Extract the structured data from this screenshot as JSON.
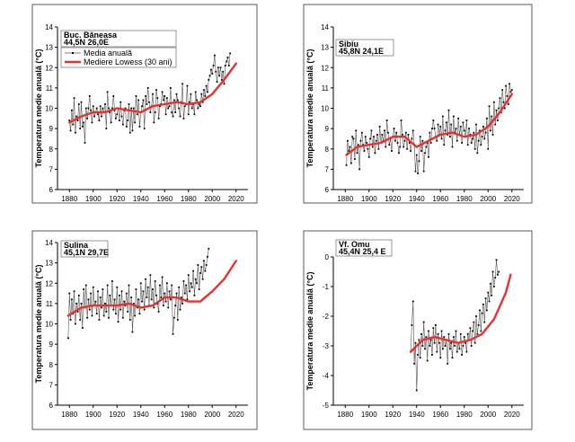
{
  "chart_data": [
    {
      "type": "line",
      "station": "Buc. Băneasa",
      "coords": "44,5N 26,0E",
      "ylabel": "Temperatura medie anuală (°C)",
      "xlabel": "",
      "xlim": [
        1870,
        2030
      ],
      "xticks": [
        1880,
        1900,
        1920,
        1940,
        1960,
        1980,
        2000,
        2020
      ],
      "ylim": [
        6,
        14
      ],
      "yticks": [
        6,
        7,
        8,
        9,
        10,
        11,
        12,
        13,
        14
      ],
      "legend": [
        "Media anuală",
        "Mediere Lowess (30 ani)"
      ],
      "legend_position": "top-left",
      "colors": {
        "annual": "#000000",
        "lowess": "#e8312f"
      },
      "annual": {
        "start_year": 1880,
        "values": [
          9.4,
          8.9,
          9.9,
          9.2,
          10.5,
          8.8,
          9.6,
          9.4,
          10.2,
          9.0,
          10.3,
          9.1,
          9.3,
          8.3,
          10.0,
          9.5,
          10.0,
          10.6,
          9.9,
          9.3,
          10.1,
          9.6,
          9.8,
          10.0,
          9.7,
          9.4,
          10.1,
          9.6,
          10.0,
          9.8,
          10.2,
          9.0,
          10.8,
          10.0,
          9.8,
          9.3,
          10.0,
          10.6,
          9.9,
          9.5,
          9.7,
          10.0,
          9.4,
          10.3,
          9.6,
          9.2,
          9.9,
          10.0,
          9.1,
          9.4,
          10.2,
          8.8,
          10.0,
          8.9,
          10.0,
          9.3,
          10.6,
          9.7,
          10.4,
          9.1,
          9.8,
          10.1,
          10.4,
          9.0,
          10.6,
          10.2,
          11.0,
          10.3,
          9.8,
          10.1,
          10.7,
          9.3,
          9.8,
          10.9,
          10.5,
          9.5,
          10.1,
          10.2,
          10.8,
          10.4,
          10.6,
          9.7,
          10.5,
          10.0,
          10.1,
          11.0,
          9.8,
          9.6,
          10.4,
          9.8,
          10.7,
          10.4,
          10.0,
          9.6,
          10.3,
          11.2,
          9.5,
          10.1,
          10.2,
          11.1,
          9.7,
          10.3,
          10.7,
          10.0,
          10.2,
          9.7,
          10.8,
          10.4,
          10.0,
          10.2,
          10.1,
          10.7,
          10.3,
          10.9,
          10.6,
          11.1,
          10.8,
          11.4,
          11.6,
          11.9,
          11.7,
          12.1,
          12.6,
          11.8,
          11.3,
          12.0,
          11.6,
          12.0,
          11.4,
          11.8,
          11.2,
          12.1,
          12.3,
          12.5,
          12.1,
          12.7
        ]
      },
      "lowess": {
        "x": [
          1880,
          1890,
          1900,
          1910,
          1920,
          1930,
          1940,
          1950,
          1960,
          1970,
          1980,
          1990,
          2000,
          2010,
          2020
        ],
        "y": [
          9.3,
          9.6,
          9.8,
          9.8,
          10.0,
          9.9,
          9.8,
          10.1,
          10.2,
          10.3,
          10.2,
          10.3,
          10.7,
          11.4,
          12.2
        ]
      }
    },
    {
      "type": "line",
      "station": "Sibiu",
      "coords": "45,8N 24,1E",
      "ylabel": "Temperatura medie anuală (°C)",
      "xlabel": "",
      "xlim": [
        1870,
        2030
      ],
      "xticks": [
        1880,
        1900,
        1920,
        1940,
        1960,
        1980,
        2000,
        2020
      ],
      "ylim": [
        6,
        14
      ],
      "yticks": [
        6,
        7,
        8,
        9,
        10,
        11,
        12,
        13,
        14
      ],
      "legend": [],
      "colors": {
        "annual": "#000000",
        "lowess": "#e8312f"
      },
      "annual": {
        "start_year": 1881,
        "values": [
          7.2,
          8.4,
          7.9,
          8.1,
          7.3,
          8.6,
          8.5,
          7.5,
          8.9,
          7.8,
          8.2,
          7.0,
          8.4,
          8.8,
          8.2,
          7.9,
          8.6,
          8.3,
          8.0,
          7.6,
          8.5,
          8.9,
          8.1,
          8.6,
          7.8,
          8.4,
          8.7,
          8.0,
          9.1,
          8.3,
          8.7,
          8.4,
          8.9,
          8.1,
          9.4,
          8.8,
          8.2,
          8.5,
          7.9,
          8.6,
          9.0,
          8.4,
          8.8,
          8.3,
          7.8,
          8.1,
          9.4,
          8.7,
          8.1,
          8.4,
          8.8,
          8.0,
          8.7,
          8.3,
          7.9,
          8.5,
          8.9,
          8.2,
          6.9,
          7.7,
          6.8,
          7.4,
          8.6,
          7.9,
          8.4,
          6.9,
          7.8,
          8.1,
          8.3,
          7.6,
          8.8,
          8.3,
          9.0,
          9.4,
          9.0,
          8.6,
          8.4,
          9.2,
          8.7,
          9.1,
          8.5,
          9.6,
          8.2,
          8.9,
          9.3,
          8.7,
          9.9,
          8.6,
          9.2,
          8.1,
          9.6,
          8.8,
          9.0,
          8.4,
          9.5,
          8.7,
          9.1,
          8.3,
          9.3,
          8.9,
          8.6,
          9.4,
          8.2,
          9.0,
          8.7,
          8.3,
          8.5,
          8.8,
          8.0,
          9.2,
          7.8,
          8.4,
          8.9,
          8.2,
          8.6,
          9.1,
          8.5,
          8.8,
          9.5,
          8.0,
          10.1,
          8.9,
          9.6,
          8.7,
          10.3,
          9.2,
          9.9,
          9.4,
          10.0,
          10.5,
          9.8,
          10.9,
          10.3,
          10.0,
          11.1,
          10.6,
          10.2,
          11.2,
          10.8,
          10.9
        ]
      },
      "lowess": {
        "x": [
          1881,
          1890,
          1900,
          1910,
          1920,
          1930,
          1940,
          1950,
          1960,
          1970,
          1980,
          1990,
          2000,
          2010,
          2020
        ],
        "y": [
          7.7,
          8.1,
          8.2,
          8.3,
          8.6,
          8.6,
          8.1,
          8.4,
          8.7,
          8.8,
          8.6,
          8.7,
          9.1,
          9.8,
          10.7
        ]
      }
    },
    {
      "type": "line",
      "station": "Sulina",
      "coords": "45,1N 29,7E",
      "ylabel": "Temperatura medie anuală (°C)",
      "xlabel": "",
      "xlim": [
        1870,
        2030
      ],
      "xticks": [
        1880,
        1900,
        1920,
        1940,
        1960,
        1980,
        2000,
        2020
      ],
      "ylim": [
        6,
        14
      ],
      "yticks": [
        6,
        7,
        8,
        9,
        10,
        11,
        12,
        13,
        14
      ],
      "legend": [],
      "colors": {
        "annual": "#000000",
        "lowess": "#e8312f"
      },
      "annual": {
        "start_year": 1879,
        "values": [
          9.3,
          11.5,
          10.2,
          11.2,
          10.5,
          11.6,
          10.0,
          11.0,
          10.6,
          11.4,
          10.2,
          11.0,
          9.8,
          11.7,
          10.8,
          11.9,
          10.3,
          11.2,
          10.7,
          11.5,
          10.4,
          11.8,
          10.9,
          11.1,
          10.5,
          11.6,
          10.2,
          11.3,
          10.8,
          11.7,
          10.4,
          11.0,
          10.6,
          11.9,
          10.3,
          11.4,
          10.9,
          12.1,
          10.7,
          11.2,
          10.5,
          11.8,
          10.1,
          11.4,
          10.7,
          11.6,
          10.3,
          11.1,
          10.9,
          11.5,
          10.6,
          11.9,
          10.2,
          11.3,
          9.6,
          11.0,
          10.4,
          11.7,
          10.8,
          11.2,
          10.5,
          12.0,
          11.1,
          11.6,
          10.7,
          12.2,
          11.3,
          11.8,
          10.9,
          12.4,
          11.2,
          11.7,
          10.8,
          12.1,
          11.4,
          11.0,
          10.6,
          11.9,
          11.3,
          12.3,
          10.9,
          11.5,
          11.1,
          12.0,
          10.8,
          11.6,
          11.2,
          11.9,
          9.5,
          10.3,
          10.9,
          11.5,
          10.2,
          11.8,
          10.7,
          11.3,
          11.0,
          12.1,
          11.5,
          11.9,
          11.2,
          12.4,
          11.6,
          12.0,
          11.8,
          12.6,
          11.4,
          12.2,
          12.0,
          12.9,
          11.7,
          12.5,
          12.8,
          12.2,
          13.1,
          12.6,
          12.9,
          13.3,
          13.7
        ]
      },
      "lowess": {
        "x": [
          1879,
          1890,
          1900,
          1910,
          1920,
          1930,
          1940,
          1950,
          1960,
          1970,
          1980,
          1990,
          2000,
          2010,
          2020
        ],
        "y": [
          10.4,
          10.8,
          10.9,
          10.9,
          10.9,
          11.0,
          10.8,
          10.9,
          11.3,
          11.3,
          11.1,
          11.1,
          11.6,
          12.2,
          13.1
        ]
      }
    },
    {
      "type": "line",
      "station": "Vf. Omu",
      "coords": "45,4N 25,4 E",
      "ylabel": "Temperatura medie anuală (°C)",
      "xlabel": "",
      "xlim": [
        1870,
        2030
      ],
      "xticks": [
        1880,
        1900,
        1920,
        1940,
        1960,
        1980,
        2000,
        2020
      ],
      "ylim": [
        -5,
        0
      ],
      "yticks": [
        -5,
        -4,
        -3,
        -2,
        -1,
        0
      ],
      "legend": [],
      "colors": {
        "annual": "#000000",
        "lowess": "#e8312f"
      },
      "annual": {
        "start_year": 1935,
        "values": [
          -3.2,
          -2.3,
          -1.5,
          -3.6,
          -2.9,
          -4.5,
          -3.3,
          -2.8,
          -3.4,
          -2.6,
          -3.0,
          -2.2,
          -3.1,
          -2.7,
          -3.5,
          -2.5,
          -3.0,
          -2.8,
          -3.3,
          -2.4,
          -2.9,
          -2.3,
          -3.2,
          -2.6,
          -2.9,
          -3.4,
          -2.5,
          -3.1,
          -2.7,
          -3.0,
          -2.8,
          -3.6,
          -2.6,
          -3.1,
          -2.9,
          -3.4,
          -2.7,
          -3.0,
          -2.5,
          -3.2,
          -2.9,
          -3.1,
          -2.6,
          -3.3,
          -3.0,
          -2.7,
          -2.9,
          -3.2,
          -2.6,
          -2.8,
          -2.4,
          -3.0,
          -2.5,
          -2.2,
          -2.9,
          -2.0,
          -2.6,
          -2.3,
          -1.8,
          -2.5,
          -1.9,
          -1.6,
          -2.2,
          -1.4,
          -1.8,
          -1.2,
          -1.5,
          -0.9,
          -1.3,
          -0.5,
          -1.0,
          -0.7,
          -0.1,
          -0.6,
          -0.5
        ]
      },
      "lowess": {
        "x": [
          1935,
          1945,
          1955,
          1965,
          1975,
          1985,
          1995,
          2005,
          2015,
          2019
        ],
        "y": [
          -3.2,
          -2.8,
          -2.7,
          -2.8,
          -2.9,
          -2.8,
          -2.6,
          -2.1,
          -1.2,
          -0.6
        ]
      }
    }
  ]
}
